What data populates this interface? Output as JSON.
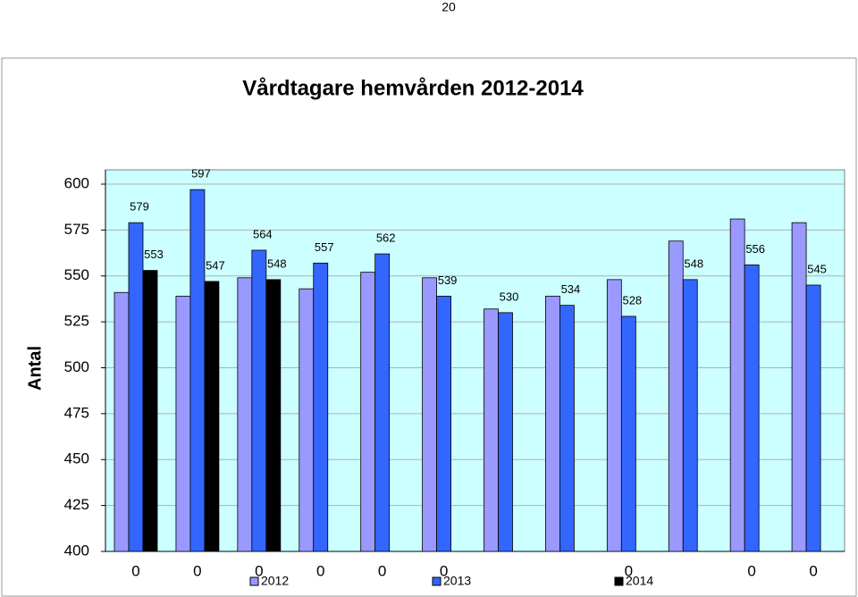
{
  "page_number": "20",
  "chart_data": {
    "type": "bar",
    "title": "Vårdtagare hemvården 2012-2014",
    "y_label": "Antal",
    "categories": [
      "0",
      "0",
      "0",
      "0",
      "0",
      "0",
      null,
      null,
      "0",
      null,
      "0",
      "0"
    ],
    "series": [
      {
        "name": "2012",
        "color": "#9999ff",
        "values": [
          541,
          539,
          549,
          543,
          552,
          549,
          532,
          539,
          548,
          569,
          581,
          579
        ]
      },
      {
        "name": "2013",
        "color": "#3366ff",
        "values": [
          579,
          597,
          564,
          557,
          562,
          539,
          530,
          534,
          528,
          548,
          556,
          545
        ],
        "labeled": true
      },
      {
        "name": "2014",
        "color": "#000000",
        "values": [
          553,
          547,
          548,
          null,
          null,
          null,
          null,
          null,
          null,
          null,
          null,
          null
        ],
        "labeled": true
      }
    ],
    "ylim": [
      400,
      600
    ],
    "yticks": [
      400,
      425,
      450,
      475,
      500,
      525,
      550,
      575,
      600
    ],
    "grid": true,
    "legend": "bottom",
    "background": "#ccffff"
  }
}
